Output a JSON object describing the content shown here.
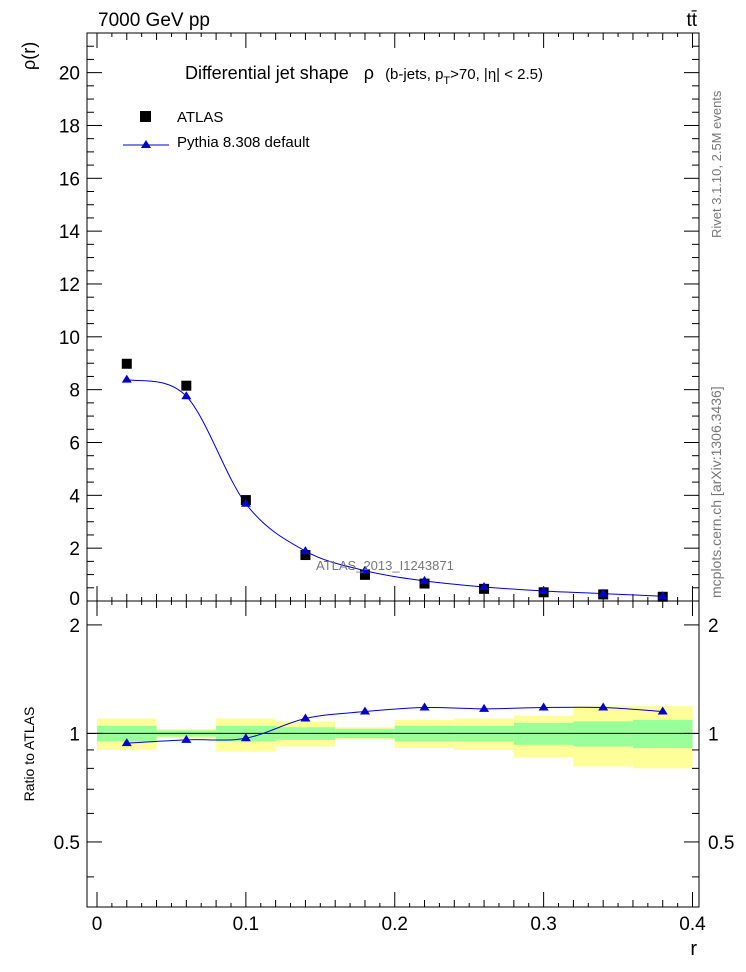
{
  "header": {
    "energy": "7000 GeV pp",
    "process": "tt̄",
    "side_rivet": "Rivet 3.1.10,  2.5M events",
    "side_mcplots": "mcplots.cern.ch [arXiv:1306.3436]",
    "watermark": "ATLAS_2013_I1243871"
  },
  "chart_data": {
    "type": "scatter",
    "title": "Differential jet shape  ρ (b-jets, pT>70, |η| < 2.5)",
    "title_main": "Differential jet shape",
    "title_rho": "ρ",
    "title_detail_a": "(b-jets, p",
    "title_detail_sub": "T",
    "title_detail_b": ">70, |η| < 2.5)",
    "xlabel": "r",
    "ylabel": "ρ(r)",
    "ratio_ylabel": "Ratio to ATLAS",
    "xlim": [
      0,
      0.4
    ],
    "ylim": [
      0,
      21.5
    ],
    "ratio_ylim": [
      0.33,
      2.33
    ],
    "x_ticks": [
      "0",
      "0.1",
      "0.2",
      "0.3",
      "0.4"
    ],
    "y_ticks": [
      "0",
      "2",
      "4",
      "6",
      "8",
      "10",
      "12",
      "14",
      "16",
      "18",
      "20"
    ],
    "ratio_ticks": [
      "0.5",
      "1",
      "2"
    ],
    "legend": [
      "ATLAS",
      "Pythia 8.308 default"
    ],
    "colors": {
      "data": "#000000",
      "mc": "#0000cc",
      "band_inner": "#99ff99",
      "band_outer": "#ffff99"
    },
    "bin_edges": [
      0,
      0.04,
      0.08,
      0.12,
      0.16,
      0.2,
      0.24,
      0.28,
      0.32,
      0.36,
      0.4
    ],
    "series": [
      {
        "name": "ATLAS",
        "x": [
          0.02,
          0.06,
          0.1,
          0.14,
          0.18,
          0.22,
          0.26,
          0.3,
          0.34,
          0.38
        ],
        "values": [
          8.98,
          8.15,
          3.82,
          1.74,
          0.99,
          0.66,
          0.46,
          0.33,
          0.25,
          0.16
        ]
      },
      {
        "name": "Pythia 8.308 default",
        "x": [
          0.02,
          0.06,
          0.1,
          0.14,
          0.18,
          0.22,
          0.26,
          0.3,
          0.34,
          0.38
        ],
        "values": [
          8.38,
          7.75,
          3.68,
          1.89,
          1.15,
          0.76,
          0.53,
          0.38,
          0.28,
          0.18
        ]
      }
    ],
    "ratio": {
      "mc": [
        0.94,
        0.96,
        0.97,
        1.1,
        1.15,
        1.18,
        1.17,
        1.18,
        1.18,
        1.15
      ],
      "inner_band": [
        [
          0.95,
          1.05
        ],
        [
          0.98,
          1.02
        ],
        [
          0.95,
          1.05
        ],
        [
          0.96,
          1.04
        ],
        [
          0.97,
          1.03
        ],
        [
          0.95,
          1.05
        ],
        [
          0.95,
          1.05
        ],
        [
          0.93,
          1.07
        ],
        [
          0.92,
          1.08
        ],
        [
          0.91,
          1.09
        ]
      ],
      "outer_band": [
        [
          0.9,
          1.1
        ],
        [
          0.97,
          1.03
        ],
        [
          0.89,
          1.1
        ],
        [
          0.92,
          1.08
        ],
        [
          0.96,
          1.04
        ],
        [
          0.91,
          1.09
        ],
        [
          0.9,
          1.1
        ],
        [
          0.86,
          1.12
        ],
        [
          0.81,
          1.19
        ],
        [
          0.8,
          1.19
        ]
      ]
    }
  }
}
